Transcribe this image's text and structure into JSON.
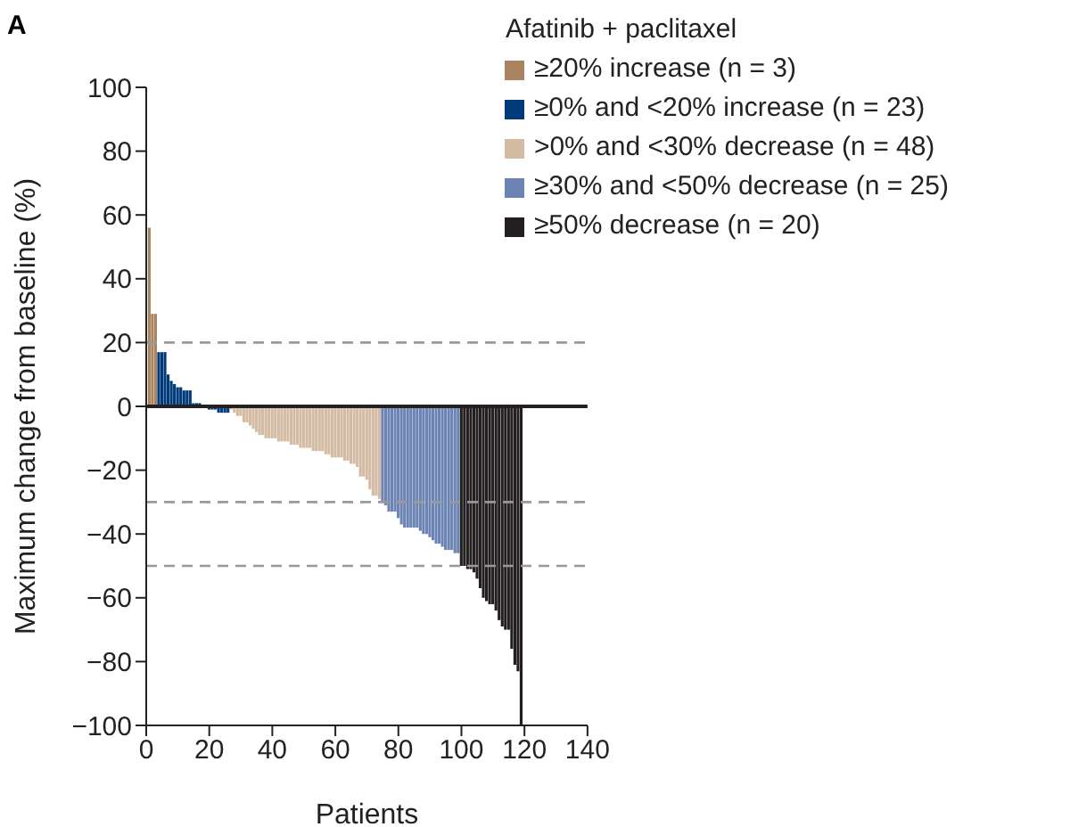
{
  "chart_data": {
    "type": "bar",
    "xlabel": "Patients",
    "ylabel": "Maximum change from baseline (%)",
    "legend_title": "Afatinib + paclitaxel",
    "annotations": [
      "A"
    ],
    "xlim": [
      0,
      140
    ],
    "xticks": [
      0,
      20,
      40,
      60,
      80,
      100,
      120,
      140
    ],
    "ylim": [
      -100,
      100
    ],
    "yticks": [
      {
        "value": -100,
        "label": "−100"
      },
      {
        "value": -80,
        "label": "−80"
      },
      {
        "value": -60,
        "label": "−60"
      },
      {
        "value": -40,
        "label": "−40"
      },
      {
        "value": -20,
        "label": "−20"
      },
      0,
      20,
      40,
      60,
      80,
      100
    ],
    "legend": "top right",
    "ref_lines": [
      {
        "axis": "y",
        "value": 0,
        "color": "#231f20",
        "line_style": "solid"
      },
      {
        "axis": "y",
        "value": 20,
        "color": "#999999",
        "line_style": "dashed"
      },
      {
        "axis": "y",
        "value": -30,
        "color": "#999999",
        "line_style": "dashed"
      },
      {
        "axis": "y",
        "value": -50,
        "color": "#999999",
        "line_style": "dashed"
      }
    ],
    "series": [
      {
        "name": "≥20% increase (n = 3)",
        "color": "#a88460",
        "x": [
          1,
          2,
          3
        ],
        "values": [
          56,
          29,
          29
        ]
      },
      {
        "name": "≥0% and <20% increase (n = 23)",
        "color": "#003a78",
        "x": [
          4,
          5,
          6,
          7,
          8,
          9,
          10,
          11,
          12,
          13,
          14,
          15,
          16,
          17,
          18,
          19,
          20,
          21,
          22,
          23,
          24,
          25,
          26
        ],
        "values": [
          17,
          17,
          17,
          10,
          8,
          7,
          6,
          6,
          5,
          5,
          5,
          1,
          1,
          1,
          0,
          0,
          -1,
          -1,
          -1,
          -2,
          -2,
          -2,
          -2
        ]
      },
      {
        "name": ">0% and <30% decrease (n = 48)",
        "color": "#d4bba3",
        "x": [
          27,
          28,
          29,
          30,
          31,
          32,
          33,
          34,
          35,
          36,
          37,
          38,
          39,
          40,
          41,
          42,
          43,
          44,
          45,
          46,
          47,
          48,
          49,
          50,
          51,
          52,
          53,
          54,
          55,
          56,
          57,
          58,
          59,
          60,
          61,
          62,
          63,
          64,
          65,
          66,
          67,
          68,
          69,
          70,
          71,
          72,
          73,
          74
        ],
        "values": [
          -1,
          -2,
          -3,
          -3,
          -5,
          -5,
          -6,
          -7,
          -8,
          -9,
          -9,
          -10,
          -10,
          -10,
          -10,
          -11,
          -11,
          -11,
          -11,
          -12,
          -12,
          -12,
          -13,
          -13,
          -13,
          -13,
          -14,
          -14,
          -14,
          -14,
          -15,
          -15,
          -16,
          -16,
          -16,
          -16,
          -17,
          -17,
          -18,
          -18,
          -19,
          -22,
          -22,
          -23,
          -26,
          -28,
          -28,
          -29
        ]
      },
      {
        "name": "≥30% and <50% decrease (n = 25)",
        "color": "#6b84b3",
        "x": [
          75,
          76,
          77,
          78,
          79,
          80,
          81,
          82,
          83,
          84,
          85,
          86,
          87,
          88,
          89,
          90,
          91,
          92,
          93,
          94,
          95,
          96,
          97,
          98,
          99
        ],
        "values": [
          -30,
          -31,
          -33,
          -33,
          -33,
          -35,
          -37,
          -38,
          -38,
          -38,
          -38,
          -38,
          -39,
          -40,
          -40,
          -41,
          -42,
          -43,
          -43,
          -44,
          -45,
          -45,
          -45,
          -46,
          -46
        ]
      },
      {
        "name": "≥50% decrease (n = 20)",
        "color": "#231f20",
        "x": [
          100,
          101,
          102,
          103,
          104,
          105,
          106,
          107,
          108,
          109,
          110,
          111,
          112,
          113,
          114,
          115,
          116,
          117,
          118,
          119
        ],
        "values": [
          -50,
          -50,
          -51,
          -51,
          -52,
          -54,
          -57,
          -60,
          -61,
          -62,
          -62,
          -64,
          -67,
          -69,
          -70,
          -70,
          -76,
          -81,
          -83,
          -100
        ]
      }
    ]
  }
}
